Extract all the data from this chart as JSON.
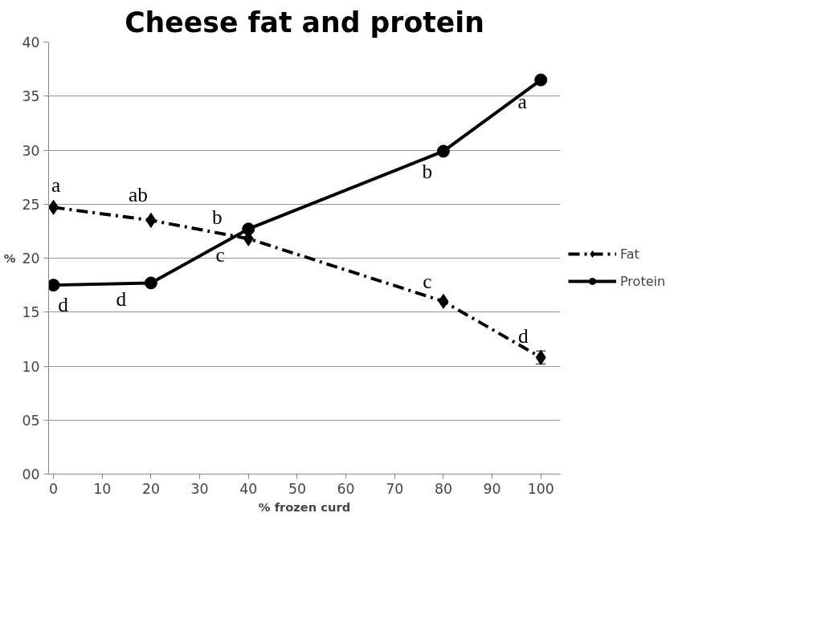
{
  "chart_data": {
    "type": "line",
    "title": "Cheese fat and protein",
    "xlabel": "% frozen curd",
    "ylabel": "%",
    "xlim": [
      -1,
      104
    ],
    "xticks": [
      0,
      10,
      20,
      30,
      40,
      50,
      60,
      70,
      80,
      90,
      100
    ],
    "ylim": [
      0,
      40
    ],
    "yticks": [
      {
        "value": 0,
        "label": "00"
      },
      {
        "value": 5,
        "label": "05"
      },
      10,
      15,
      20,
      25,
      30,
      35,
      40
    ],
    "grid": "y",
    "legend": "right",
    "series": [
      {
        "name": "Fat",
        "color": "#000000",
        "x": [
          0,
          20,
          40,
          80,
          100
        ],
        "values": [
          24.7,
          23.5,
          21.8,
          16.0,
          10.8
        ],
        "errors": [
          null,
          null,
          null,
          null,
          0.6
        ],
        "marker": "diamond",
        "line_style": "dashed"
      },
      {
        "name": "Protein",
        "color": "#000000",
        "x": [
          0,
          20,
          40,
          80,
          100
        ],
        "values": [
          17.5,
          17.7,
          22.7,
          29.9,
          36.5
        ],
        "marker": "circle",
        "line_style": "solid"
      }
    ],
    "annotations": [
      {
        "text": "a",
        "x": 0,
        "y": 24.7
      },
      {
        "text": "ab",
        "x": 20,
        "y": 23.5
      },
      {
        "text": "b",
        "x": 40,
        "y": 21.8
      },
      {
        "text": "c",
        "x": 40,
        "y": 22.7
      },
      {
        "text": "d",
        "x": 0,
        "y": 17.5
      },
      {
        "text": "d",
        "x": 20,
        "y": 17.7
      },
      {
        "text": "b",
        "x": 80,
        "y": 29.9
      },
      {
        "text": "a",
        "x": 100,
        "y": 36.5
      },
      {
        "text": "c",
        "x": 80,
        "y": 16.0
      },
      {
        "text": "d",
        "x": 100,
        "y": 10.8
      }
    ]
  }
}
